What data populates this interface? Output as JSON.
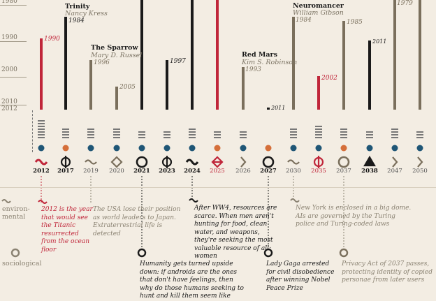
{
  "y_axis": {
    "ticks": [
      "1980",
      "1990",
      "2000",
      "2010",
      "2012"
    ]
  },
  "books": [
    {
      "title": "Trinity",
      "author": "Nancy Kress",
      "year_label": "1984"
    },
    {
      "title": "The Sparrow",
      "author": "Mary D. Russel",
      "year_label": "1996"
    },
    {
      "title": "Red Mars",
      "author": "Kim S. Robinson",
      "year_label": "1993"
    },
    {
      "title": "Neuromancer",
      "author": "William Gibson",
      "year_label": "1984"
    }
  ],
  "bar_labels": {
    "b2012": "1990",
    "b2020": "2005",
    "b2023": "1997",
    "b2027": "2011",
    "b2035": "2002",
    "b2037": "1985",
    "b2038": "2011",
    "b2047": "1979"
  },
  "story_years": [
    "2012",
    "2017",
    "2019",
    "2020",
    "2021",
    "2023",
    "2024",
    "2025",
    "2026",
    "2027",
    "2030",
    "2035",
    "2037",
    "2038",
    "2047",
    "2050"
  ],
  "axes": {
    "environmental": "environ-\nmental",
    "sociological": "sociological"
  },
  "events": {
    "e2012": "2012 is the year that would see the Titanic resurrected from the ocean floor",
    "e2019": "The USA lose their position as world leaders to Japan. Extraterrestrial life is detected",
    "e2024": "After WW4, resources are scarce. When men aren't hunting for food, clean water, and weapons, they're seeking the most valuable resource of all: women",
    "e2030": "New York is enclosed in a big dome. AIs are governed by the Turing police and Turing-coded laws",
    "e2021": "Humanity gets turned upside down: if androids are the ones that don't have feelings, then why do those humans seeking to hunt and kill them seem like",
    "e2027": "Lady Gaga arrested for civil disobedience after winning Nobel Peace Prize",
    "e2037": "Privacy Act of 2037 passes, protecting identity of copied personae from later users"
  },
  "colors": {
    "red": "#c0263a",
    "black": "#1a1a1a",
    "olive": "#7a6f5c",
    "blue": "#1f5676",
    "orange": "#d56f3a",
    "bg": "#f3ede3"
  }
}
